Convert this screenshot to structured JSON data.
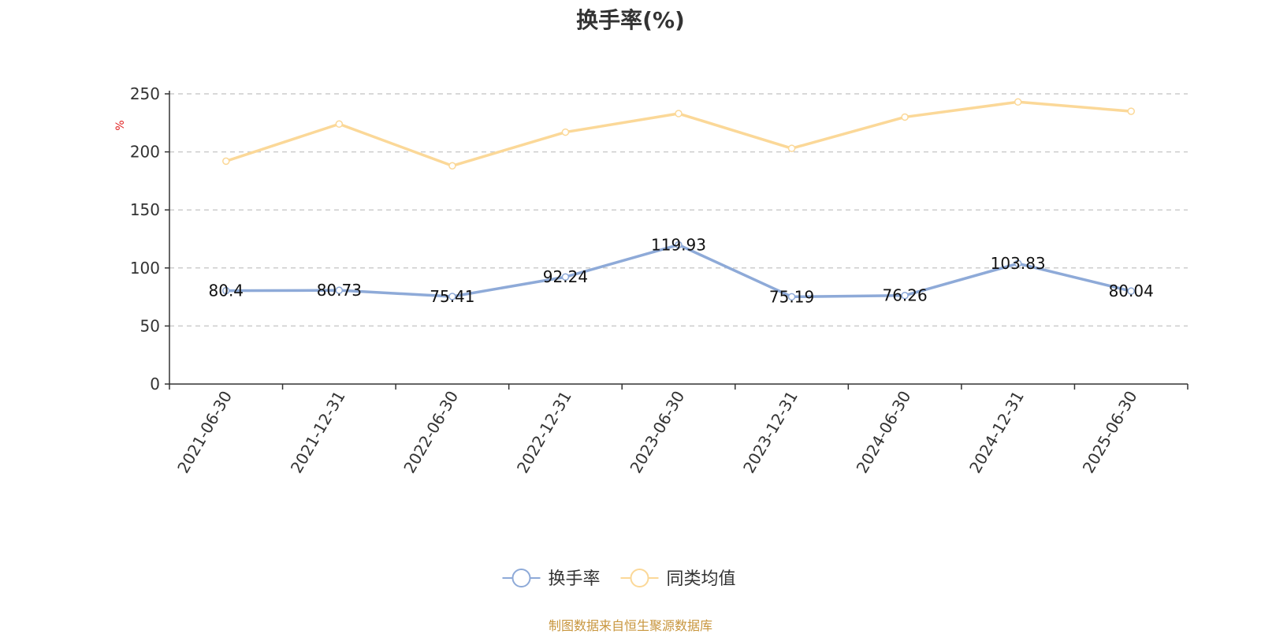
{
  "chart_data": {
    "type": "line",
    "title": "换手率(%)",
    "ylabel": "%",
    "ylim": [
      0,
      250
    ],
    "yticks": [
      0,
      50,
      100,
      150,
      200,
      250
    ],
    "grid": true,
    "legend_position": "bottom",
    "categories": [
      "2021-06-30",
      "2021-12-31",
      "2022-06-30",
      "2022-12-31",
      "2023-06-30",
      "2023-12-31",
      "2024-06-30",
      "2024-12-31",
      "2025-06-30"
    ],
    "series": [
      {
        "name": "换手率",
        "color": "#8eaad8",
        "values": [
          80.4,
          80.73,
          75.41,
          92.24,
          119.93,
          75.19,
          76.26,
          103.83,
          80.04
        ],
        "show_labels": true
      },
      {
        "name": "同类均值",
        "color": "#fbd898",
        "values": [
          192,
          224,
          188,
          217,
          233,
          203,
          230,
          243,
          235
        ],
        "show_labels": false
      }
    ]
  },
  "source": "制图数据来自恒生聚源数据库"
}
